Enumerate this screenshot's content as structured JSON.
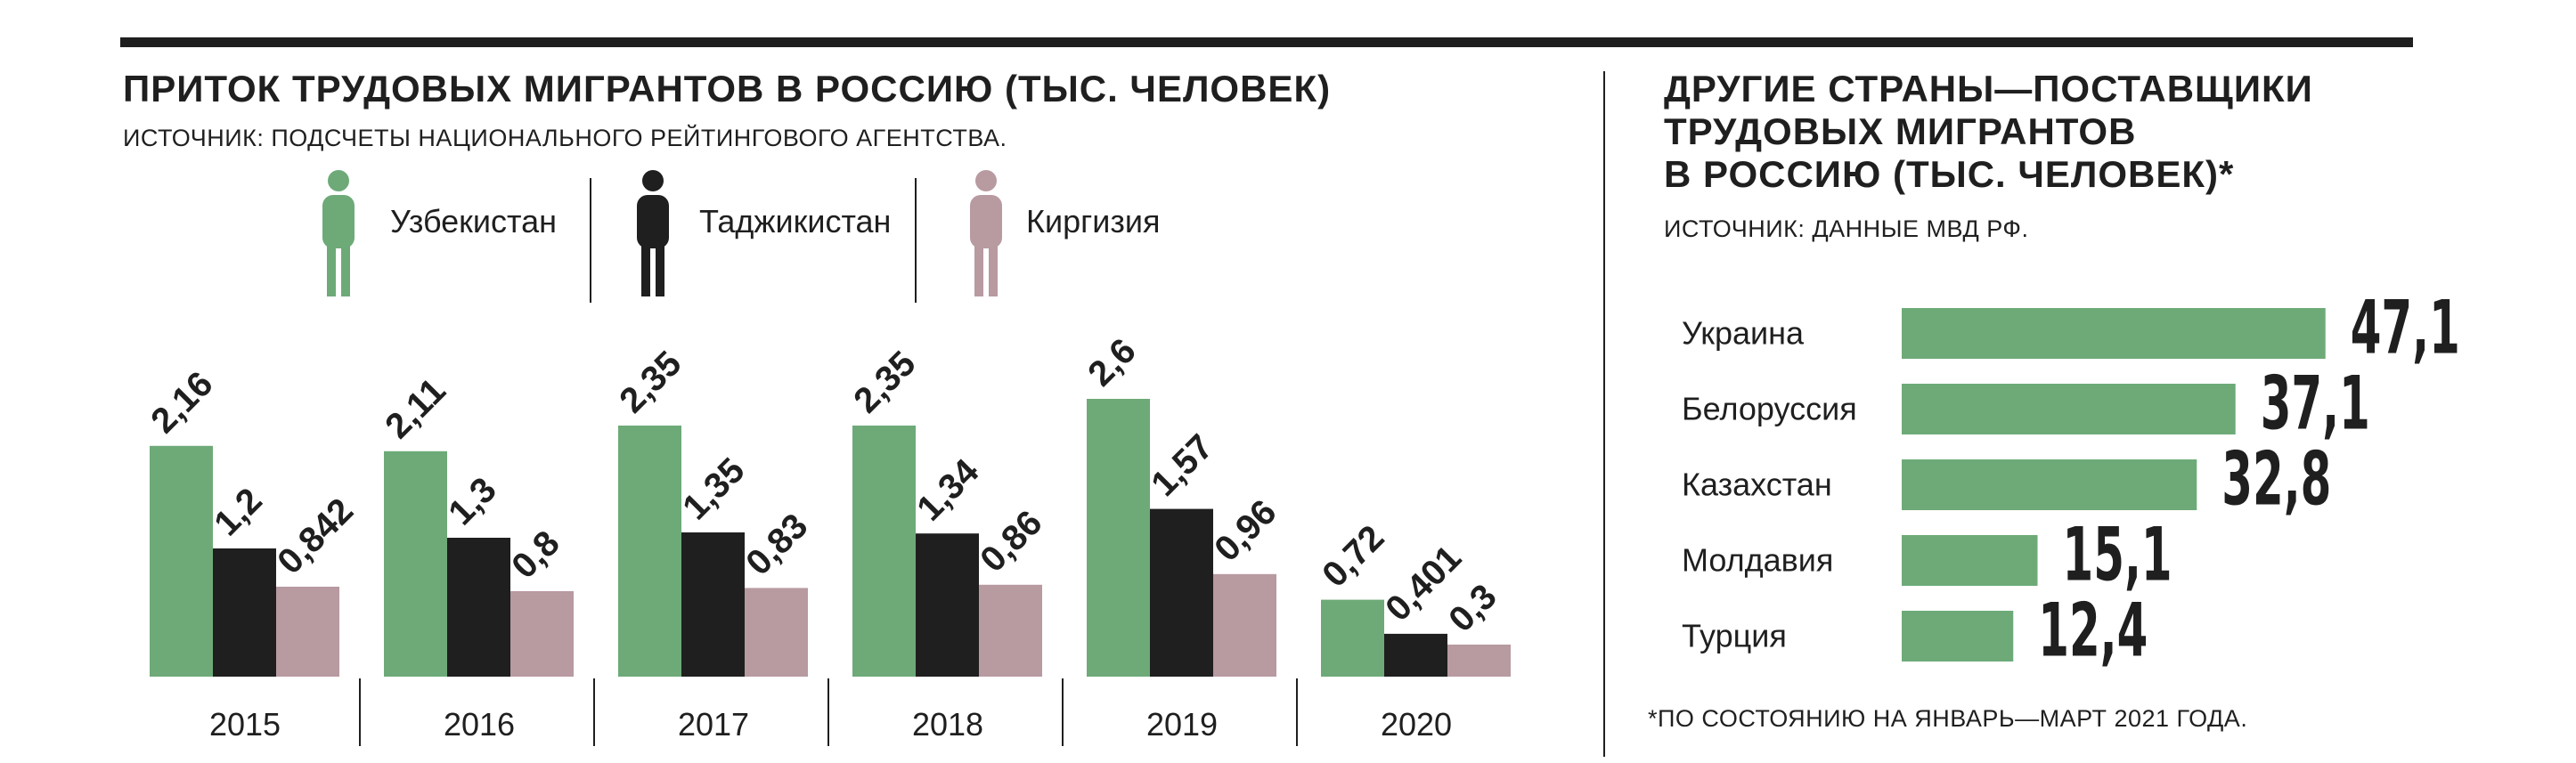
{
  "left": {
    "title": "ПРИТОК ТРУДОВЫХ МИГРАНТОВ В РОССИЮ (ТЫС. ЧЕЛОВЕК)",
    "source": "ИСТОЧНИК: ПОДСЧЕТЫ НАЦИОНАЛЬНОГО РЕЙТИНГОВОГО АГЕНТСТВА."
  },
  "right": {
    "title_lines": [
      "ДРУГИЕ СТРАНЫ—ПОСТАВЩИКИ",
      "ТРУДОВЫХ МИГРАНТОВ",
      "В РОССИЮ (ТЫС. ЧЕЛОВЕК)*"
    ],
    "source": "ИСТОЧНИК: ДАННЫЕ МВД РФ.",
    "footnote": "*ПО СОСТОЯНИЮ НА ЯНВАРЬ—МАРТ 2021 ГОДА."
  },
  "legend": [
    {
      "label": "Узбекистан",
      "color": "#6daa78",
      "icon": "person-icon"
    },
    {
      "label": "Таджикистан",
      "color": "#1f1f1f",
      "icon": "person-icon"
    },
    {
      "label": "Киргизия",
      "color": "#b89aa1",
      "icon": "person-icon"
    }
  ],
  "chart_data": [
    {
      "type": "bar",
      "title": "ПРИТОК ТРУДОВЫХ МИГРАНТОВ В РОССИЮ (ТЫС. ЧЕЛОВЕК)",
      "categories": [
        "2015",
        "2016",
        "2017",
        "2018",
        "2019",
        "2020"
      ],
      "series": [
        {
          "name": "Узбекистан",
          "color": "#6daa78",
          "values": [
            2.16,
            2.11,
            2.35,
            2.35,
            2.6,
            0.72
          ],
          "labels": [
            "2,16",
            "2,11",
            "2,35",
            "2,35",
            "2,6",
            "0,72"
          ]
        },
        {
          "name": "Таджикистан",
          "color": "#1f1f1f",
          "values": [
            1.2,
            1.3,
            1.35,
            1.34,
            1.57,
            0.401
          ],
          "labels": [
            "1,2",
            "1,3",
            "1,35",
            "1,34",
            "1,57",
            "0,401"
          ]
        },
        {
          "name": "Киргизия",
          "color": "#b89aa1",
          "values": [
            0.842,
            0.8,
            0.83,
            0.86,
            0.96,
            0.3
          ],
          "labels": [
            "0,842",
            "0,8",
            "0,83",
            "0,86",
            "0,96",
            "0,3"
          ]
        }
      ],
      "grid": false,
      "legend": "top"
    },
    {
      "type": "bar",
      "orientation": "horizontal",
      "title": "ДРУГИЕ СТРАНЫ—ПОСТАВЩИКИ ТРУДОВЫХ МИГРАНТОВ В РОССИЮ (ТЫС. ЧЕЛОВЕК)*",
      "categories": [
        "Украина",
        "Белоруссия",
        "Казахстан",
        "Молдавия",
        "Турция"
      ],
      "values": [
        47.1,
        37.1,
        32.8,
        15.1,
        12.4
      ],
      "labels": [
        "47,1",
        "37,1",
        "32,8",
        "15,1",
        "12,4"
      ],
      "color": "#6daa78",
      "grid": false
    }
  ]
}
